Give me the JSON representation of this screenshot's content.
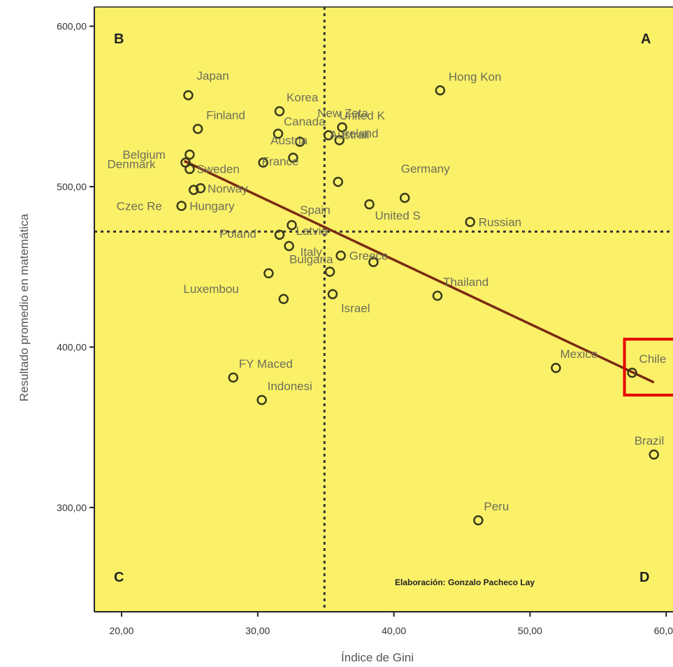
{
  "chart_data": {
    "type": "scatter",
    "xlabel": "Índice de Gini",
    "ylabel": "Resultado promedio en matemática",
    "xlim": [
      18,
      60.5
    ],
    "ylim": [
      235,
      612
    ],
    "x_ticks": [
      "20,00",
      "30,00",
      "40,00",
      "50,00",
      "60,00"
    ],
    "y_ticks": [
      "300,00",
      "400,00",
      "500,00",
      "600,00"
    ],
    "x_tick_values": [
      20,
      30,
      40,
      50,
      60
    ],
    "y_tick_values": [
      300,
      400,
      500,
      600
    ],
    "background": "#faf169",
    "marker_color": "#3a3a1a",
    "trend_color": "#7a2a12",
    "highlight_color": "#e60000",
    "quadrant_labels": [
      "A",
      "B",
      "C",
      "D"
    ],
    "credit": "Elaboración: Gonzalo Pacheco Lay",
    "reference_lines": {
      "x": 34.9,
      "y": 472
    },
    "trend_line": {
      "x": [
        24.6,
        59.1
      ],
      "y": [
        516,
        378
      ]
    },
    "highlight_label": "Chile",
    "points": [
      {
        "label": "Japan",
        "x": 24.9,
        "y": 557
      },
      {
        "label": "Finland",
        "x": 25.6,
        "y": 536
      },
      {
        "label": "Korea",
        "x": 31.6,
        "y": 547
      },
      {
        "label": "Canada",
        "x": 31.5,
        "y": 533
      },
      {
        "label": "New Zeta",
        "x": 35.2,
        "y": 532
      },
      {
        "label": "United K",
        "x": 36.2,
        "y": 537
      },
      {
        "label": "Australi",
        "x": 36.0,
        "y": 529
      },
      {
        "label": "Austria",
        "x": 33.1,
        "y": 528
      },
      {
        "label": "Hong Kon",
        "x": 43.4,
        "y": 560
      },
      {
        "label": "Belgium",
        "x": 25.0,
        "y": 520
      },
      {
        "label": "Sweden",
        "x": 25.0,
        "y": 511
      },
      {
        "label": "Denmark",
        "x": 24.7,
        "y": 515
      },
      {
        "label": "Ireland",
        "x": 32.6,
        "y": 518
      },
      {
        "label": "France",
        "x": 30.4,
        "y": 515
      },
      {
        "label": "Norway",
        "x": 25.8,
        "y": 499
      },
      {
        "label": "Czec Re",
        "x": 24.4,
        "y": 488
      },
      {
        "label": "Germany",
        "x": 35.9,
        "y": 503
      },
      {
        "label": "Spain",
        "x": 40.8,
        "y": 493
      },
      {
        "label": "United S",
        "x": 38.2,
        "y": 489
      },
      {
        "label": "Russian",
        "x": 45.6,
        "y": 478
      },
      {
        "label": "Hungary",
        "x": 25.3,
        "y": 498
      },
      {
        "label": "Latvia",
        "x": 32.5,
        "y": 476
      },
      {
        "label": "Poland",
        "x": 31.6,
        "y": 470
      },
      {
        "label": "Italy",
        "x": 32.3,
        "y": 463
      },
      {
        "label": "Greece",
        "x": 36.1,
        "y": 457
      },
      {
        "label": "",
        "x": 38.5,
        "y": 453
      },
      {
        "label": "Luxembou",
        "x": 30.8,
        "y": 446
      },
      {
        "label": "Bulgaria",
        "x": 35.3,
        "y": 447
      },
      {
        "label": "",
        "x": 31.9,
        "y": 430
      },
      {
        "label": "Israel",
        "x": 35.5,
        "y": 433
      },
      {
        "label": "Thailand",
        "x": 43.2,
        "y": 432
      },
      {
        "label": "Mexico",
        "x": 51.9,
        "y": 387
      },
      {
        "label": "Chile",
        "x": 57.5,
        "y": 384
      },
      {
        "label": "FY Maced",
        "x": 28.2,
        "y": 381
      },
      {
        "label": "Indonesi",
        "x": 30.3,
        "y": 367
      },
      {
        "label": "Brazil",
        "x": 59.1,
        "y": 333
      },
      {
        "label": "Peru",
        "x": 46.2,
        "y": 292
      }
    ]
  }
}
